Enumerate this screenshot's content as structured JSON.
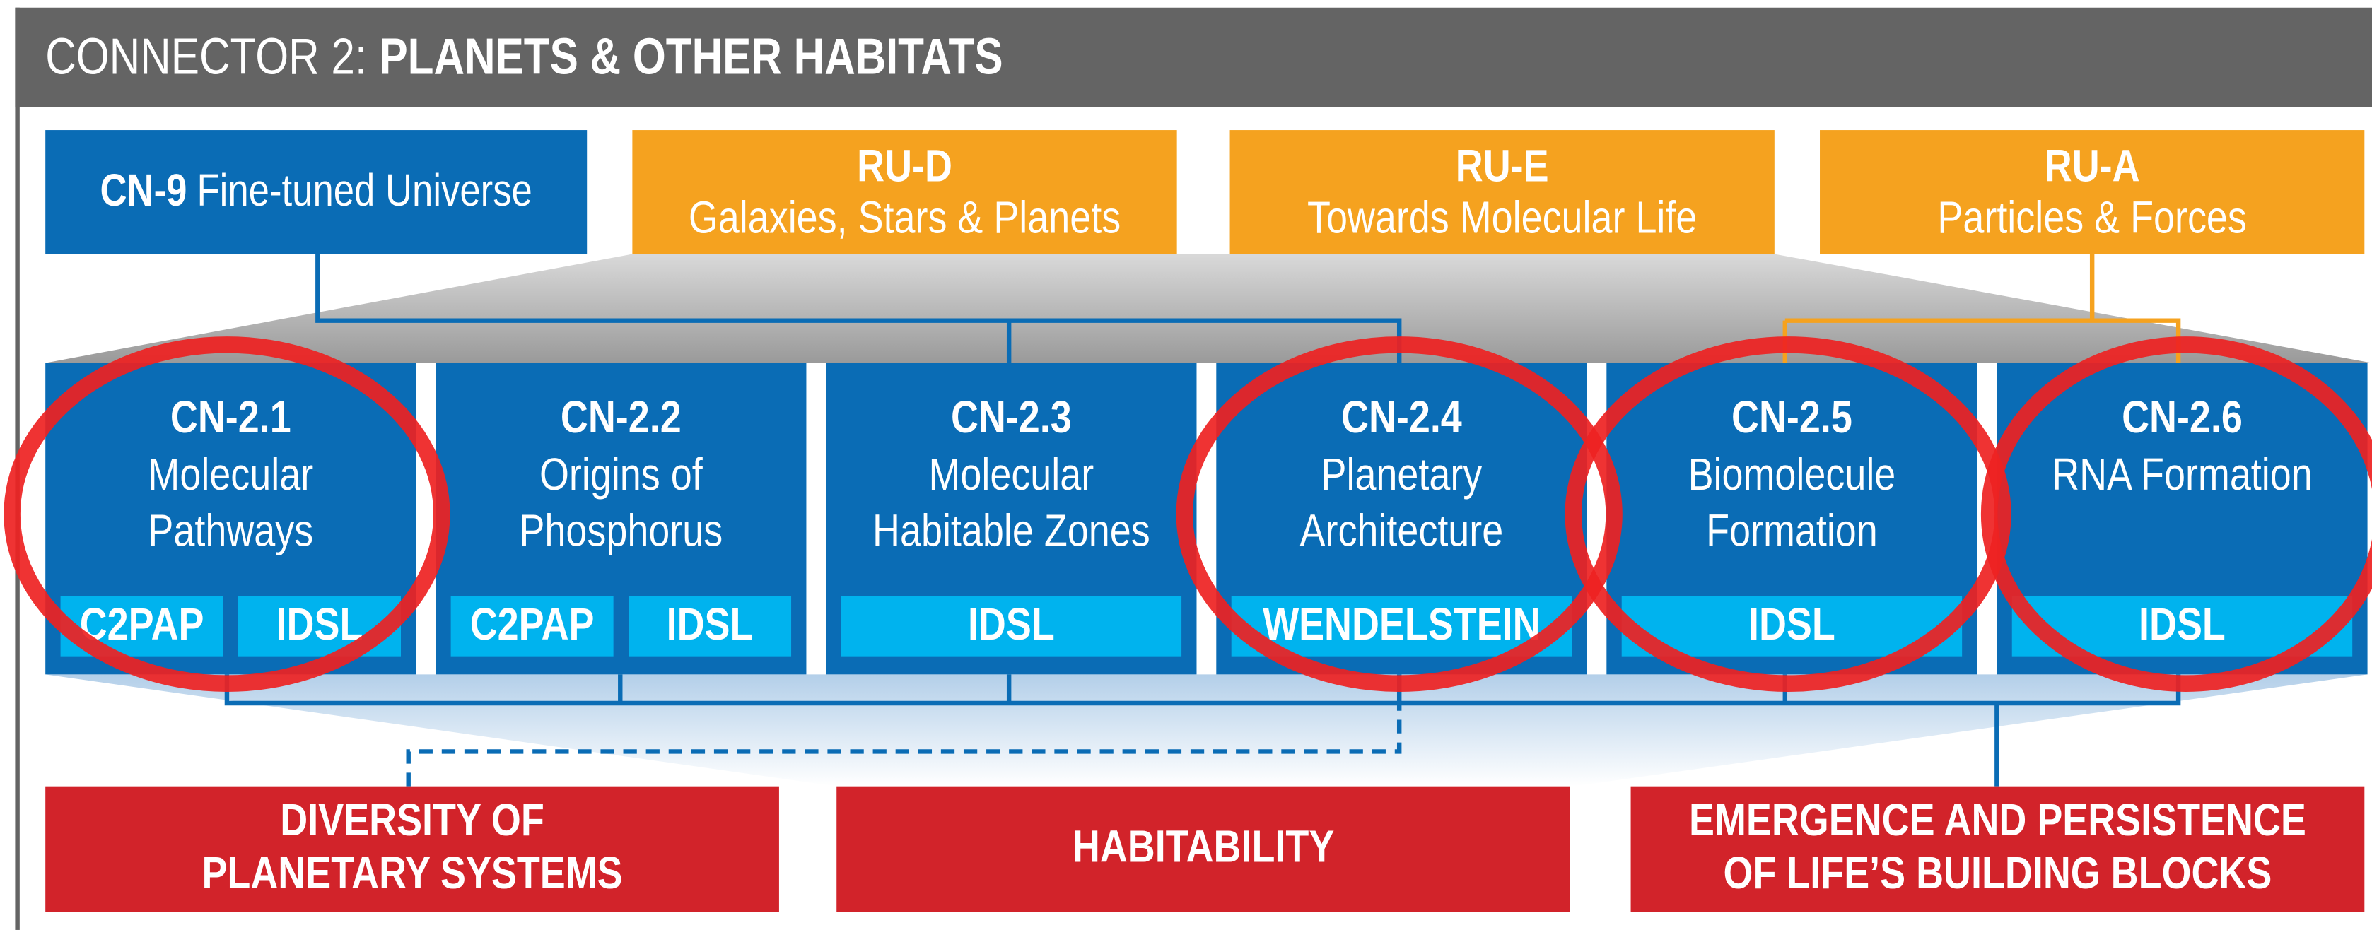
{
  "header": {
    "prefix": "CONNECTOR 2:",
    "title": "PLANETS & OTHER HABITATS"
  },
  "sources": [
    {
      "id": "CN-9",
      "label": "Fine-tuned Universe"
    },
    {
      "id": "RU-D",
      "label": "Galaxies, Stars & Planets"
    },
    {
      "id": "RU-E",
      "label": "Towards Molecular Life"
    },
    {
      "id": "RU-A",
      "label": "Particles & Forces"
    }
  ],
  "projects": [
    {
      "id": "CN-2.1",
      "lines": [
        "Molecular",
        "Pathways"
      ],
      "tags": [
        "C2PAP",
        "IDSL"
      ]
    },
    {
      "id": "CN-2.2",
      "lines": [
        "Origins of",
        "Phosphorus"
      ],
      "tags": [
        "C2PAP",
        "IDSL"
      ]
    },
    {
      "id": "CN-2.3",
      "lines": [
        "Molecular",
        "Habitable Zones"
      ],
      "tags": [
        "IDSL"
      ]
    },
    {
      "id": "CN-2.4",
      "lines": [
        "Planetary",
        "Architecture"
      ],
      "tags": [
        "WENDELSTEIN"
      ]
    },
    {
      "id": "CN-2.5",
      "lines": [
        "Biomolecule",
        "Formation"
      ],
      "tags": [
        "IDSL"
      ]
    },
    {
      "id": "CN-2.6",
      "lines": [
        "RNA Formation"
      ],
      "tags": [
        "IDSL"
      ]
    }
  ],
  "outcomes": [
    {
      "lines": [
        "DIVERSITY OF",
        "PLANETARY SYSTEMS"
      ]
    },
    {
      "lines": [
        "HABITABILITY"
      ]
    },
    {
      "lines": [
        "EMERGENCE AND PERSISTENCE",
        "OF LIFE’S BUILDING BLOCKS"
      ]
    }
  ]
}
